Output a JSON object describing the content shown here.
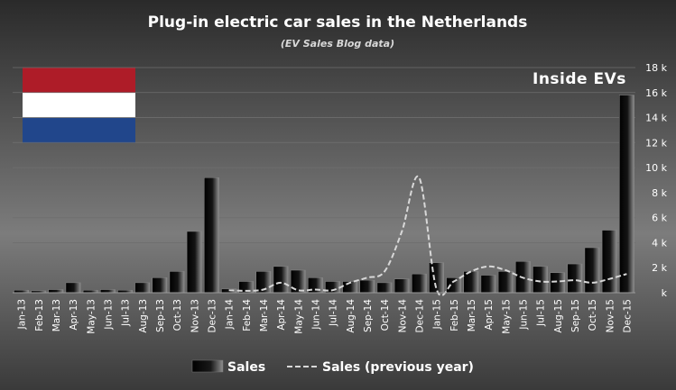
{
  "chart_data": {
    "type": "bar",
    "title": "Plug-in electric car sales in the Netherlands",
    "subtitle": "(EV Sales Blog data)",
    "brand": "Inside EVs",
    "categories": [
      "Jan-13",
      "Feb-13",
      "Mar-13",
      "Apr-13",
      "May-13",
      "Jun-13",
      "Jul-13",
      "Aug-13",
      "Sep-13",
      "Oct-13",
      "Nov-13",
      "Dec-13",
      "Jan-14",
      "Feb-14",
      "Mar-14",
      "Apr-14",
      "May-14",
      "Jun-14",
      "Jul-14",
      "Aug-14",
      "Sep-14",
      "Oct-14",
      "Nov-14",
      "Dec-14",
      "Jan-15",
      "Feb-15",
      "Mar-15",
      "Apr-15",
      "May-15",
      "Jun-15",
      "Jul-15",
      "Aug-15",
      "Sep-15",
      "Oct-15",
      "Nov-15",
      "Dec-15"
    ],
    "series": [
      {
        "name": "Sales",
        "type": "bar",
        "values": [
          200,
          150,
          250,
          800,
          200,
          250,
          200,
          800,
          1200,
          1700,
          4900,
          9200,
          300,
          900,
          1700,
          2100,
          1800,
          1200,
          900,
          900,
          1000,
          800,
          1100,
          1500,
          2400,
          1200,
          1700,
          1400,
          1700,
          2500,
          2100,
          1600,
          2300,
          3600,
          5000,
          15800
        ]
      },
      {
        "name": "Sales (previous year)",
        "type": "line-dashed",
        "values": [
          null,
          null,
          null,
          null,
          null,
          null,
          null,
          null,
          null,
          null,
          null,
          null,
          200,
          150,
          250,
          800,
          200,
          250,
          200,
          800,
          1200,
          1700,
          4900,
          9200,
          300,
          900,
          1700,
          2100,
          1800,
          1200,
          900,
          900,
          1000,
          800,
          1100,
          1500
        ]
      }
    ],
    "y_tick_labels": [
      "k",
      "2 k",
      "4 k",
      "6 k",
      "8 k",
      "10 k",
      "12 k",
      "14 k",
      "16 k",
      "18 k"
    ],
    "ylim": [
      0,
      18000
    ],
    "y_step": 2000,
    "y_axis_position": "right",
    "grid": true,
    "legend_position": "bottom"
  },
  "colors": {
    "background_top": "#2c2c2c",
    "background_mid": "#7a7a7a",
    "bar_fill_dark": "#050505",
    "bar_fill_light": "#9a9a9a",
    "line_color": "#d8d8d8",
    "grid_color": "#6b6b6b",
    "flag_red": "#ae1c28",
    "flag_white": "#ffffff",
    "flag_blue": "#21468b"
  },
  "decorations": {
    "flag": "netherlands-flag"
  }
}
